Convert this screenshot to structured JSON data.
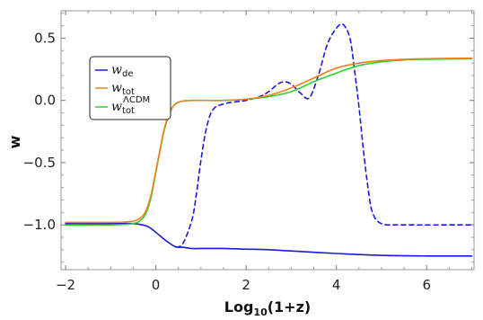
{
  "chart_data": {
    "type": "line",
    "title": "",
    "xlabel": "Log10(1+z)",
    "xlabel_main": "Log",
    "xlabel_sub": "10",
    "xlabel_tail": "(1+z)",
    "ylabel": "w",
    "xlim": [
      -2.1,
      7.05
    ],
    "ylim": [
      -1.36,
      0.72
    ],
    "xticks": [
      -2,
      0,
      2,
      4,
      6
    ],
    "yticks": [
      -1.0,
      -0.5,
      0.0,
      0.5
    ],
    "xtick_labels": [
      "−2",
      "0",
      "2",
      "4",
      "6"
    ],
    "ytick_labels": [
      "−1.0",
      "−0.5",
      "0.0",
      "0.5"
    ],
    "grid": false,
    "legend_position": "upper-left",
    "series": [
      {
        "name": "w_de",
        "legend_main": "w",
        "legend_sub": "de",
        "color": "#1a1adc",
        "style": "solid",
        "x": [
          -2.0,
          -1.0,
          -0.5,
          -0.2,
          0.0,
          0.2,
          0.4,
          0.5,
          0.6,
          0.8,
          1.0,
          1.5,
          2.0,
          2.5,
          3.0,
          4.0,
          5.0,
          6.0,
          7.0
        ],
        "y": [
          -0.99,
          -0.99,
          -0.99,
          -1.01,
          -1.06,
          -1.12,
          -1.17,
          -1.18,
          -1.18,
          -1.19,
          -1.19,
          -1.19,
          -1.195,
          -1.2,
          -1.21,
          -1.23,
          -1.245,
          -1.25,
          -1.25
        ]
      },
      {
        "name": "w_de (dashed)",
        "legend_main": "",
        "legend_sub": "",
        "color": "#1a1adc",
        "style": "dashed",
        "x": [
          0.45,
          0.6,
          0.8,
          0.9,
          1.0,
          1.1,
          1.2,
          1.3,
          1.4,
          1.6,
          1.8,
          2.0,
          2.3,
          2.5,
          2.7,
          2.85,
          3.0,
          3.2,
          3.4,
          3.6,
          3.8,
          4.0,
          4.15,
          4.3,
          4.4,
          4.5,
          4.6,
          4.7,
          4.8,
          5.0,
          5.5,
          7.0
        ],
        "y": [
          -1.18,
          -1.15,
          -0.96,
          -0.75,
          -0.48,
          -0.26,
          -0.12,
          -0.06,
          -0.04,
          -0.02,
          -0.01,
          0.0,
          0.03,
          0.07,
          0.13,
          0.15,
          0.13,
          0.06,
          0.02,
          0.2,
          0.45,
          0.58,
          0.61,
          0.5,
          0.25,
          -0.05,
          -0.4,
          -0.7,
          -0.9,
          -0.99,
          -1.0,
          -1.0
        ]
      },
      {
        "name": "w_tot",
        "legend_main": "w",
        "legend_sub": "tot",
        "color": "#f0801c",
        "style": "solid",
        "x": [
          -2.0,
          -1.0,
          -0.5,
          -0.3,
          -0.2,
          -0.1,
          0.0,
          0.1,
          0.2,
          0.3,
          0.4,
          0.5,
          0.6,
          0.8,
          1.0,
          1.5,
          2.0,
          2.5,
          3.0,
          3.5,
          4.0,
          4.5,
          5.0,
          5.5,
          6.0,
          7.0
        ],
        "y": [
          -0.98,
          -0.98,
          -0.97,
          -0.93,
          -0.87,
          -0.75,
          -0.57,
          -0.38,
          -0.21,
          -0.1,
          -0.04,
          -0.015,
          -0.005,
          0.0,
          0.0,
          0.0,
          0.01,
          0.04,
          0.1,
          0.18,
          0.26,
          0.3,
          0.32,
          0.33,
          0.335,
          0.34
        ]
      },
      {
        "name": "w_tot^ΛCDM",
        "legend_main": "w",
        "legend_sub": "tot",
        "legend_sup": "ΛCDM",
        "color": "#2ed12e",
        "style": "solid",
        "x": [
          -2.0,
          -1.0,
          -0.5,
          -0.3,
          -0.2,
          -0.1,
          0.0,
          0.1,
          0.2,
          0.3,
          0.4,
          0.5,
          0.6,
          0.8,
          1.0,
          1.5,
          2.0,
          2.5,
          3.0,
          3.5,
          4.0,
          4.5,
          5.0,
          5.5,
          6.0,
          7.0
        ],
        "y": [
          -1.0,
          -1.0,
          -0.99,
          -0.95,
          -0.89,
          -0.77,
          -0.58,
          -0.39,
          -0.22,
          -0.11,
          -0.04,
          -0.015,
          -0.005,
          0.0,
          0.0,
          0.0,
          0.01,
          0.03,
          0.07,
          0.15,
          0.22,
          0.28,
          0.31,
          0.325,
          0.33,
          0.335
        ]
      }
    ]
  }
}
